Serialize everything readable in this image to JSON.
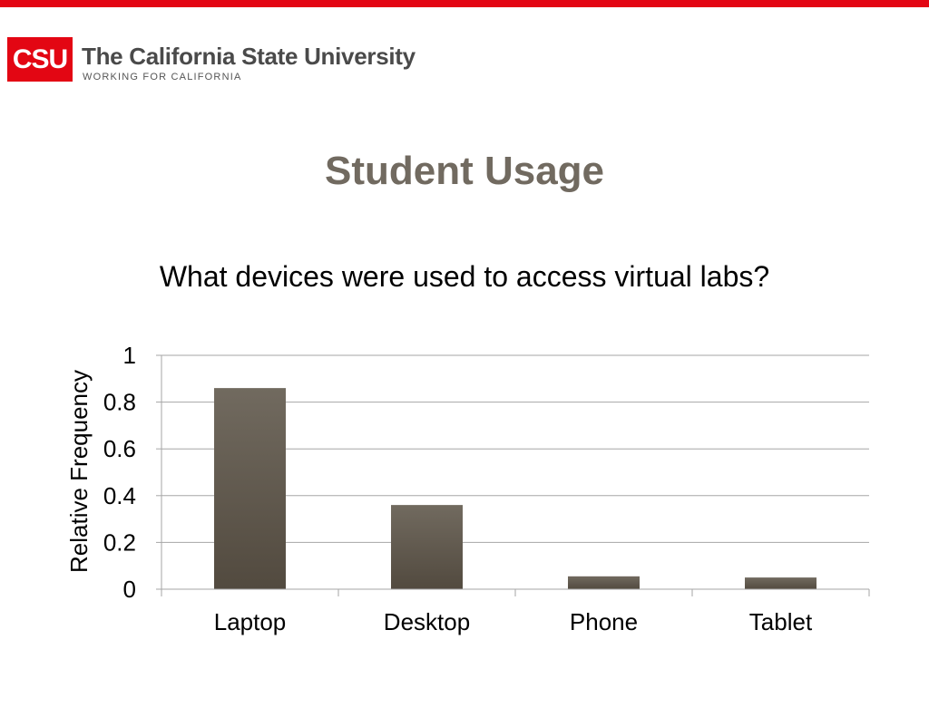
{
  "header": {
    "logo_mark": "CSU",
    "logo_name": "The California State University",
    "logo_tagline": "WORKING FOR CALIFORNIA",
    "accent_color": "#e30613"
  },
  "slide": {
    "title": "Student Usage"
  },
  "chart_data": {
    "type": "bar",
    "title": "What devices were used to access virtual labs?",
    "ylabel": "Relative Frequency",
    "xlabel": "",
    "categories": [
      "Laptop",
      "Desktop",
      "Phone",
      "Tablet"
    ],
    "values": [
      0.86,
      0.36,
      0.055,
      0.05
    ],
    "ylim": [
      0,
      1
    ],
    "yticks": [
      "0",
      "0.2",
      "0.4",
      "0.6",
      "0.8",
      "1"
    ],
    "ytick_values": [
      0,
      0.2,
      0.4,
      0.6,
      0.8,
      1
    ],
    "grid": true,
    "legend": "none",
    "bar_color": "#5e564b"
  }
}
